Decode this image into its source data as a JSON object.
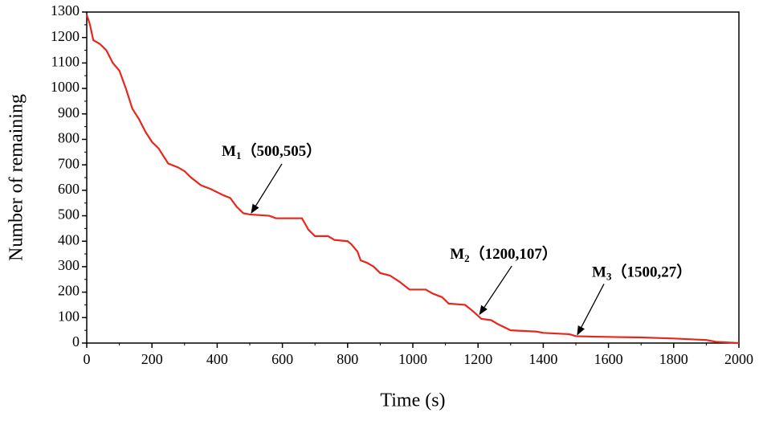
{
  "chart_data": {
    "type": "line",
    "xlabel": "Time (s)",
    "ylabel": "Number of remaining",
    "x": [
      0,
      10,
      20,
      40,
      60,
      80,
      100,
      120,
      140,
      160,
      180,
      200,
      220,
      250,
      280,
      300,
      320,
      350,
      380,
      420,
      440,
      460,
      480,
      500,
      560,
      580,
      660,
      680,
      700,
      740,
      760,
      800,
      810,
      830,
      840,
      860,
      880,
      900,
      930,
      960,
      990,
      1040,
      1060,
      1090,
      1110,
      1160,
      1180,
      1200,
      1210,
      1240,
      1260,
      1300,
      1380,
      1400,
      1480,
      1500,
      1560,
      1700,
      1800,
      1900,
      1930,
      2000
    ],
    "values": [
      1290,
      1250,
      1190,
      1175,
      1150,
      1100,
      1070,
      1000,
      920,
      880,
      830,
      790,
      765,
      705,
      690,
      675,
      650,
      620,
      605,
      580,
      570,
      535,
      510,
      505,
      500,
      490,
      490,
      445,
      420,
      420,
      405,
      400,
      390,
      360,
      325,
      315,
      300,
      275,
      265,
      240,
      210,
      210,
      195,
      180,
      155,
      150,
      130,
      107,
      95,
      90,
      75,
      50,
      45,
      40,
      35,
      27,
      25,
      22,
      18,
      12,
      5,
      0
    ],
    "color": "#e8261c",
    "xlim": [
      0,
      2000
    ],
    "xticks": [
      0,
      200,
      400,
      600,
      800,
      1000,
      1200,
      1400,
      1600,
      1800,
      2000
    ],
    "ylim": [
      0,
      1300
    ],
    "yticks": [
      0,
      100,
      200,
      300,
      400,
      500,
      600,
      700,
      800,
      900,
      1000,
      1100,
      1200,
      1300
    ],
    "annotations": [
      {
        "text": "M",
        "sub": "1",
        "rest": "（500,505）",
        "x": 500,
        "y": 505
      },
      {
        "text": "M",
        "sub": "2",
        "rest": "（1200,107）",
        "x": 1200,
        "y": 107
      },
      {
        "text": "M",
        "sub": "3",
        "rest": "（1500,27）",
        "x": 1500,
        "y": 27
      }
    ]
  }
}
